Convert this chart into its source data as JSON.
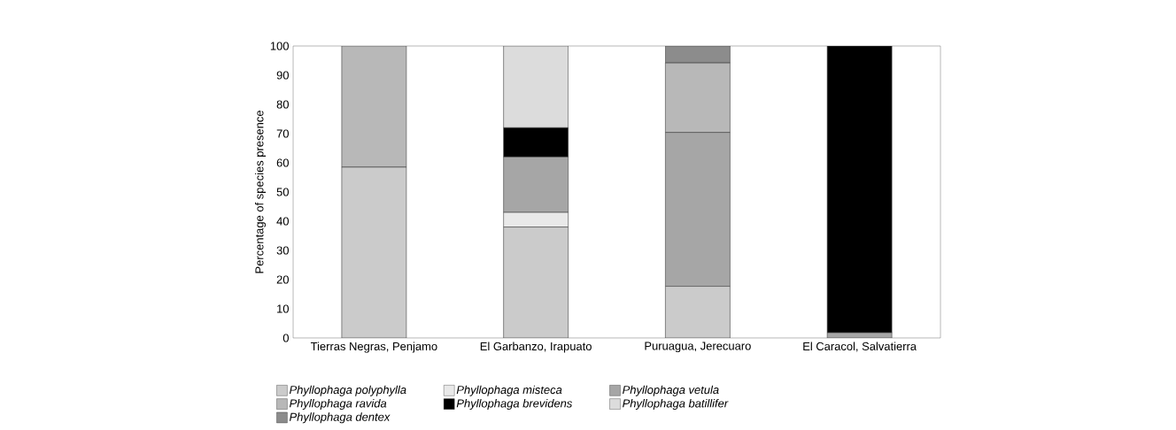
{
  "chart_data": {
    "type": "bar",
    "stacked": true,
    "ylabel": "Percentage of species presence",
    "categories": [
      "Tierras Negras, Penjamo",
      "El Garbanzo, Irapuato",
      "Puruagua, Jerecuaro",
      "El Caracol, Salvatierra"
    ],
    "series": [
      {
        "name": "Phyllophaga polyphylla",
        "color": "#cbcbcb",
        "values": [
          58.5,
          38,
          17.7,
          0
        ]
      },
      {
        "name": "Phyllophaga misteca",
        "color": "#e9e9e9",
        "values": [
          0,
          5,
          0,
          0
        ]
      },
      {
        "name": "Phyllophaga vetula",
        "color": "#a6a6a6",
        "values": [
          0,
          19,
          52.7,
          1.8
        ]
      },
      {
        "name": "Phyllophaga ravida",
        "color": "#b8b8b8",
        "values": [
          41.5,
          0,
          23.8,
          0
        ]
      },
      {
        "name": "Phyllophaga brevidens",
        "color": "#000000",
        "values": [
          0,
          10,
          0,
          98.2
        ]
      },
      {
        "name": "Phyllophaga batillifer",
        "color": "#dcdcdc",
        "values": [
          0,
          28,
          0,
          0
        ]
      },
      {
        "name": "Phyllophaga dentex",
        "color": "#8c8c8c",
        "values": [
          0,
          0,
          5.8,
          0
        ]
      }
    ],
    "ylim": [
      0,
      100
    ],
    "yticks": [
      0,
      10,
      20,
      30,
      40,
      50,
      60,
      70,
      80,
      90,
      100
    ],
    "grid": false,
    "legend": "bottom"
  }
}
